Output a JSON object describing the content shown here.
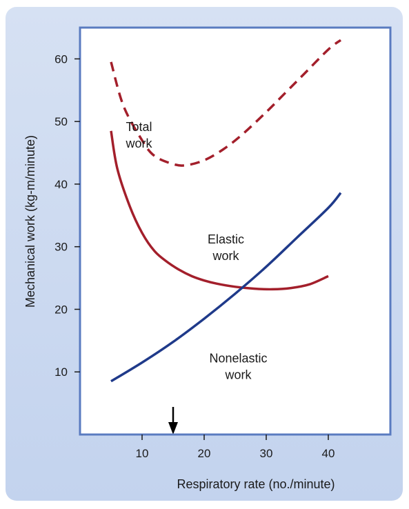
{
  "chart_data": {
    "type": "line",
    "title": "",
    "xlabel": "Respiratory rate (no./minute)",
    "ylabel": "Mechanical work (kg-m/minute)",
    "xlim": [
      0,
      50
    ],
    "ylim": [
      0,
      65
    ],
    "xticks": [
      "10",
      "20",
      "30",
      "40"
    ],
    "yticks": [
      "10",
      "20",
      "30",
      "40",
      "50",
      "60"
    ],
    "colors": {
      "red": "#a31f2b",
      "blue": "#1f3a8a",
      "frame": "#5a7bc0"
    },
    "series": [
      {
        "x": [
          5,
          7,
          10,
          12,
          15,
          17,
          20,
          23,
          26,
          30,
          33,
          36,
          40,
          42
        ],
        "y": [
          59.5,
          52.5,
          47,
          44.5,
          43.2,
          43,
          43.8,
          45.5,
          47.8,
          51.5,
          54.5,
          57.5,
          61.5,
          63
        ]
      },
      {
        "x": [
          5,
          6,
          8,
          10,
          12,
          14,
          16,
          18,
          20,
          22,
          25,
          28,
          31,
          34,
          37,
          40
        ],
        "y": [
          48.5,
          42.5,
          36.5,
          32.2,
          29.3,
          27.6,
          26.3,
          25.3,
          24.6,
          24.1,
          23.6,
          23.3,
          23.2,
          23.4,
          24,
          25.3
        ]
      },
      {
        "x": [
          5,
          10,
          15,
          20,
          25,
          30,
          35,
          40,
          42
        ],
        "y": [
          8.5,
          11.5,
          14.8,
          18.5,
          22.5,
          26.8,
          31.5,
          36.2,
          38.6
        ]
      }
    ],
    "annotations": [
      {
        "lines": [
          "Total",
          "work"
        ],
        "x": 9.5,
        "y": 48.5
      },
      {
        "lines": [
          "Elastic",
          "work"
        ],
        "x": 23.5,
        "y": 30.5
      },
      {
        "lines": [
          "Nonelastic",
          "work"
        ],
        "x": 25.5,
        "y": 11.5
      }
    ],
    "marker": {
      "type": "arrow-down",
      "x": 15
    }
  }
}
